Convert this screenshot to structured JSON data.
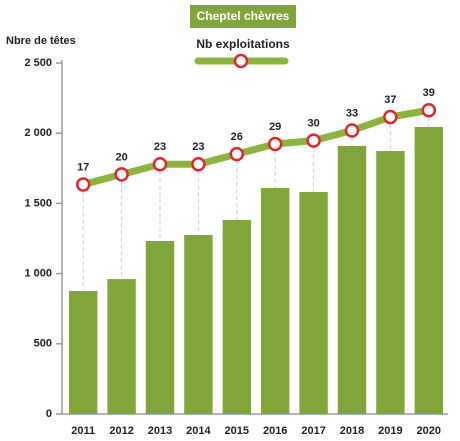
{
  "chart_data": {
    "type": "bar",
    "y_axis_label": "Nbre de têtes",
    "categories": [
      "2011",
      "2012",
      "2013",
      "2014",
      "2015",
      "2016",
      "2017",
      "2018",
      "2019",
      "2020"
    ],
    "series": [
      {
        "name": "Cheptel chèvres",
        "type": "bar",
        "color": "#80a53a",
        "values": [
          876,
          961,
          1232,
          1275,
          1382,
          1610,
          1581,
          1909,
          1873,
          2044
        ]
      },
      {
        "name": "Nb exploitations",
        "type": "line",
        "axis": "y2",
        "color": "#8db33f",
        "marker_color": "#e0282c",
        "values": [
          17,
          20,
          23,
          23,
          26,
          29,
          30,
          33,
          37,
          39
        ]
      }
    ],
    "ylim": [
      0,
      2500
    ],
    "yticks": [
      0,
      500,
      {
        "value": 1000,
        "label": "1 000"
      },
      {
        "value": 1500,
        "label": "1 500"
      },
      {
        "value": 2000,
        "label": "2 000"
      },
      {
        "value": 2500,
        "label": "2 500"
      }
    ],
    "y2lim": [
      -51,
      53
    ]
  }
}
